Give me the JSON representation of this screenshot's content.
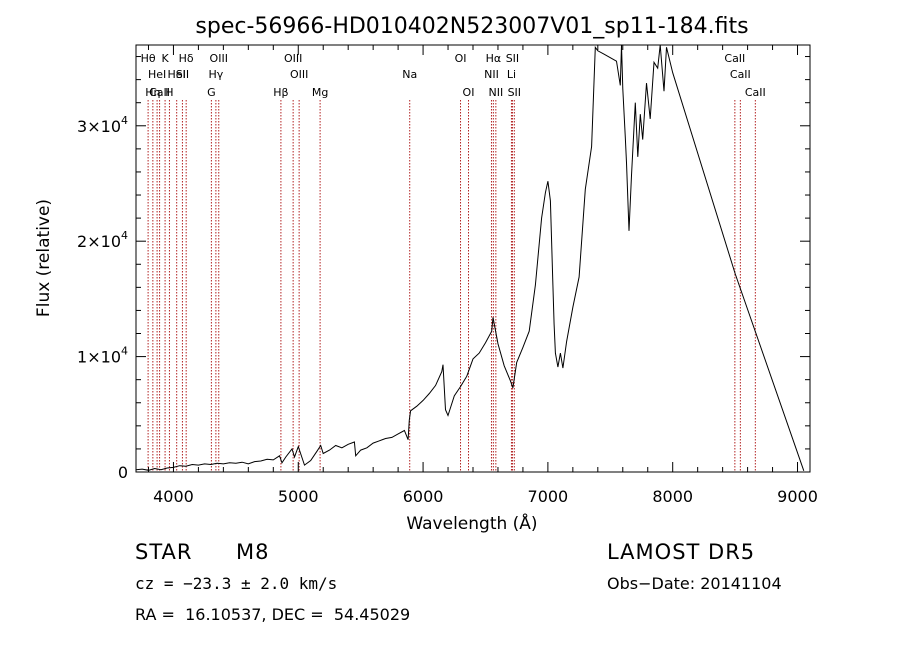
{
  "chart_data": {
    "type": "line",
    "title": "spec-56966-HD010402N523007V01_sp11-184.fits",
    "xlabel": "Wavelength (Å)",
    "ylabel": "Flux (relative)",
    "xlim": [
      3700,
      9100
    ],
    "ylim": [
      0,
      37000
    ],
    "x_ticks": [
      4000,
      5000,
      6000,
      7000,
      8000,
      9000
    ],
    "x_tick_labels": [
      "4000",
      "5000",
      "6000",
      "7000",
      "8000",
      "9000"
    ],
    "y_ticks": [
      0,
      10000,
      20000,
      30000
    ],
    "y_tick_labels": [
      {
        "mant": "0",
        "exp": ""
      },
      {
        "mant": "1×10",
        "exp": "4"
      },
      {
        "mant": "2×10",
        "exp": "4"
      },
      {
        "mant": "3×10",
        "exp": "4"
      }
    ],
    "series": [
      {
        "x": [
          3700,
          3750,
          3800,
          3850,
          3900,
          3950,
          4000,
          4050,
          4100,
          4150,
          4200,
          4250,
          4300,
          4350,
          4400,
          4450,
          4500,
          4550,
          4600,
          4650,
          4700,
          4750,
          4800,
          4850,
          4870,
          4900,
          4950,
          4970,
          5000,
          5050,
          5100,
          5150,
          5180,
          5200,
          5250,
          5300,
          5350,
          5400,
          5450,
          5460,
          5500,
          5550,
          5600,
          5650,
          5700,
          5750,
          5800,
          5850,
          5880,
          5890,
          5900,
          5950,
          6000,
          6050,
          6100,
          6150,
          6160,
          6180,
          6200,
          6250,
          6300,
          6350,
          6400,
          6450,
          6500,
          6550,
          6560,
          6600,
          6650,
          6700,
          6720,
          6750,
          6800,
          6850,
          6900,
          6950,
          6980,
          7000,
          7020,
          7040,
          7050,
          7060,
          7080,
          7100,
          7120,
          7150,
          7200,
          7250,
          7300,
          7350,
          7380,
          7400,
          7450,
          7500,
          7550,
          7580,
          7590,
          7600,
          7620,
          7630,
          7650,
          7670,
          7700,
          7720,
          7740,
          7760,
          7790,
          7820,
          7850,
          7880,
          7900,
          7930,
          7950,
          8000,
          8500,
          9050
        ],
        "y": [
          200,
          250,
          150,
          300,
          200,
          350,
          400,
          550,
          500,
          650,
          600,
          700,
          650,
          750,
          700,
          800,
          750,
          850,
          700,
          900,
          950,
          1100,
          1050,
          1400,
          800,
          1300,
          2000,
          1300,
          2200,
          600,
          1000,
          1800,
          2300,
          1600,
          1900,
          2300,
          2100,
          2400,
          2600,
          1400,
          1900,
          2100,
          2500,
          2700,
          2900,
          3000,
          3300,
          3600,
          2800,
          4500,
          5300,
          5700,
          6200,
          6800,
          7500,
          8700,
          9300,
          5400,
          4900,
          6600,
          7400,
          8300,
          9800,
          10300,
          11200,
          12200,
          13400,
          11100,
          9200,
          7900,
          7300,
          9500,
          10800,
          12200,
          16200,
          22000,
          24200,
          25200,
          23500,
          16200,
          12800,
          10300,
          9100,
          10300,
          9000,
          11300,
          14300,
          16900,
          24500,
          28200,
          36800,
          36500,
          36200,
          35900,
          35600,
          33500,
          37300,
          33200,
          29000,
          26800,
          20900,
          25700,
          32000,
          27300,
          31000,
          28800,
          33700,
          30600,
          35500,
          35000,
          37000,
          33000,
          36800,
          34600,
          17200,
          100
        ]
      }
    ],
    "markers": [
      {
        "x": 3797,
        "label": "Hθ",
        "row": 1
      },
      {
        "x": 3835,
        "label": "Hη",
        "row": 3
      },
      {
        "x": 3869,
        "label": "HeI",
        "row": 2
      },
      {
        "x": 3889,
        "label": "CaII",
        "row": 3
      },
      {
        "x": 3933,
        "label": "K",
        "row": 1
      },
      {
        "x": 3968,
        "label": "H",
        "row": 3
      },
      {
        "x": 4026,
        "label": "HeI",
        "row": 2
      },
      {
        "x": 4072,
        "label": "SII",
        "row": 2
      },
      {
        "x": 4102,
        "label": "Hδ",
        "row": 1
      },
      {
        "x": 4304,
        "label": "G",
        "row": 3
      },
      {
        "x": 4340,
        "label": "Hγ",
        "row": 2
      },
      {
        "x": 4363,
        "label": "OIII",
        "row": 1
      },
      {
        "x": 4861,
        "label": "Hβ",
        "row": 3
      },
      {
        "x": 4959,
        "label": "OIII",
        "row": 1
      },
      {
        "x": 5007,
        "label": "OIII",
        "row": 2
      },
      {
        "x": 5175,
        "label": "Mg",
        "row": 3
      },
      {
        "x": 5893,
        "label": "Na",
        "row": 2
      },
      {
        "x": 6300,
        "label": "OI",
        "row": 1
      },
      {
        "x": 6364,
        "label": "OI",
        "row": 3
      },
      {
        "x": 6548,
        "label": "NII",
        "row": 2
      },
      {
        "x": 6563,
        "label": "Hα",
        "row": 1
      },
      {
        "x": 6583,
        "label": "NII",
        "row": 3
      },
      {
        "x": 6708,
        "label": "Li",
        "row": 2
      },
      {
        "x": 6716,
        "label": "SII",
        "row": 1
      },
      {
        "x": 6731,
        "label": "SII",
        "row": 3
      },
      {
        "x": 8498,
        "label": "CaII",
        "row": 1
      },
      {
        "x": 8542,
        "label": "CaII",
        "row": 2
      },
      {
        "x": 8662,
        "label": "CaII",
        "row": 3
      }
    ]
  },
  "info": {
    "class": "STAR",
    "subclass": "M8",
    "survey": "LAMOST DR5",
    "cz": "cz = −23.3 ± 2.0 km/s",
    "obs_date": "Obs−Date: 20141104",
    "coords": "RA =  16.10537, DEC =  54.45029"
  }
}
